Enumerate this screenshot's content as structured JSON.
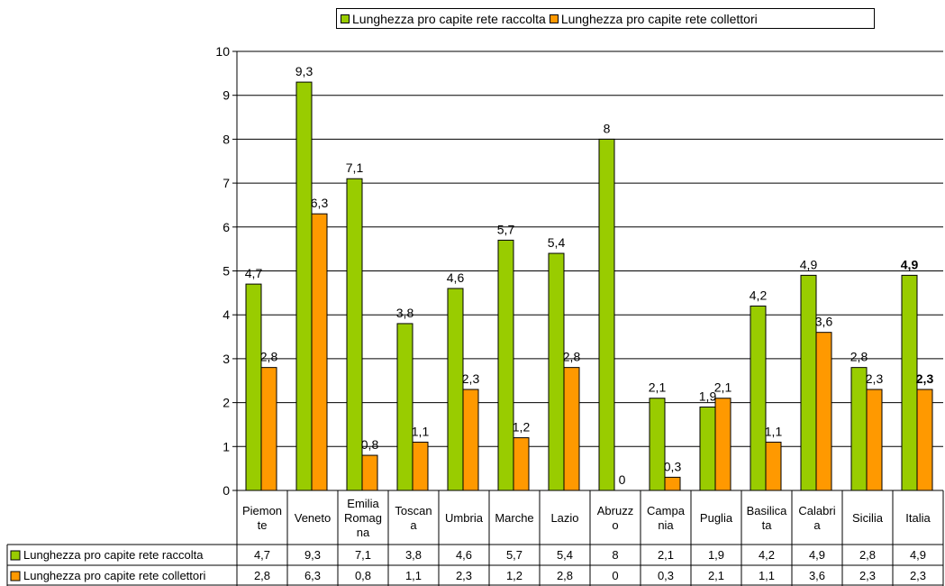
{
  "chart_data": {
    "type": "bar",
    "categories": [
      "Piemonte",
      "Veneto",
      "Emilia Romagna",
      "Toscana",
      "Umbria",
      "Marche",
      "Lazio",
      "Abruzzo",
      "Campania",
      "Puglia",
      "Basilicata",
      "Calabria",
      "Sicilia",
      "Italia"
    ],
    "category_label_lines": [
      [
        "Piemon",
        "te"
      ],
      [
        "Veneto"
      ],
      [
        "Emilia",
        "Romag",
        "na"
      ],
      [
        "Toscan",
        "a"
      ],
      [
        "Umbria"
      ],
      [
        "Marche"
      ],
      [
        "Lazio"
      ],
      [
        "Abruzz",
        "o"
      ],
      [
        "Campa",
        "nia"
      ],
      [
        "Puglia"
      ],
      [
        "Basilica",
        "ta"
      ],
      [
        "Calabri",
        "a"
      ],
      [
        "Sicilia"
      ],
      [
        "Italia"
      ]
    ],
    "series": [
      {
        "name": "Lunghezza pro capite rete raccolta",
        "color": "#99cc00",
        "values": [
          4.7,
          9.3,
          7.1,
          3.8,
          4.6,
          5.7,
          5.4,
          8,
          2.1,
          1.9,
          4.2,
          4.9,
          2.8,
          4.9
        ],
        "labels": [
          "4,7",
          "9,3",
          "7,1",
          "3,8",
          "4,6",
          "5,7",
          "5,4",
          "8",
          "2,1",
          "1,9",
          "4,2",
          "4,9",
          "2,8",
          "4,9"
        ]
      },
      {
        "name": "Lunghezza pro capite rete collettori",
        "color": "#ff9900",
        "values": [
          2.8,
          6.3,
          0.8,
          1.1,
          2.3,
          1.2,
          2.8,
          0,
          0.3,
          2.1,
          1.1,
          3.6,
          2.3,
          2.3
        ],
        "labels": [
          "2,8",
          "6,3",
          "0,8",
          "1,1",
          "2,3",
          "1,2",
          "2,8",
          "0",
          "0,3",
          "2,1",
          "1,1",
          "3,6",
          "2,3",
          "2,3"
        ]
      }
    ],
    "bold_category": "Italia",
    "ylim": [
      0,
      10
    ],
    "yticks": [
      0,
      1,
      2,
      3,
      4,
      5,
      6,
      7,
      8,
      9,
      10
    ],
    "grid": true,
    "legend_position": "top",
    "data_table": true
  }
}
